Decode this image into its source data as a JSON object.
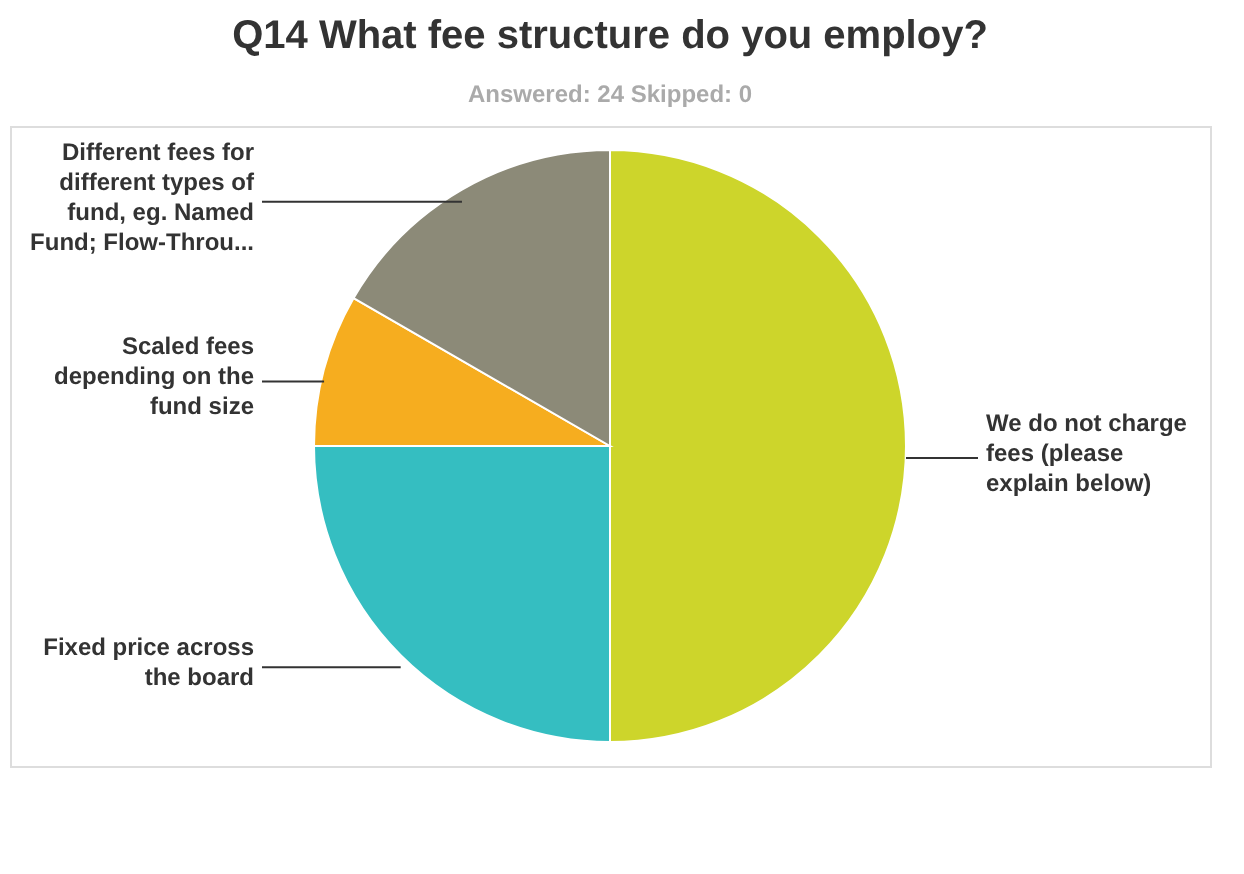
{
  "chart_data": {
    "type": "pie",
    "title": "Q14 What fee structure do you employ?",
    "subtitle": "Answered: 24    Skipped: 0",
    "categories": [
      "We do not charge\nfees (please\nexplain below)",
      "Fixed price across\nthe board",
      "Scaled fees\ndepending on the\nfund size",
      "Different fees for\ndifferent types of\nfund, eg. Named\nFund; Flow-Throu..."
    ],
    "values": [
      50,
      25,
      8.33,
      16.67
    ],
    "colors": [
      "#cdd52b",
      "#35bec1",
      "#f6ad1f",
      "#8c8a78"
    ],
    "legend": false
  }
}
